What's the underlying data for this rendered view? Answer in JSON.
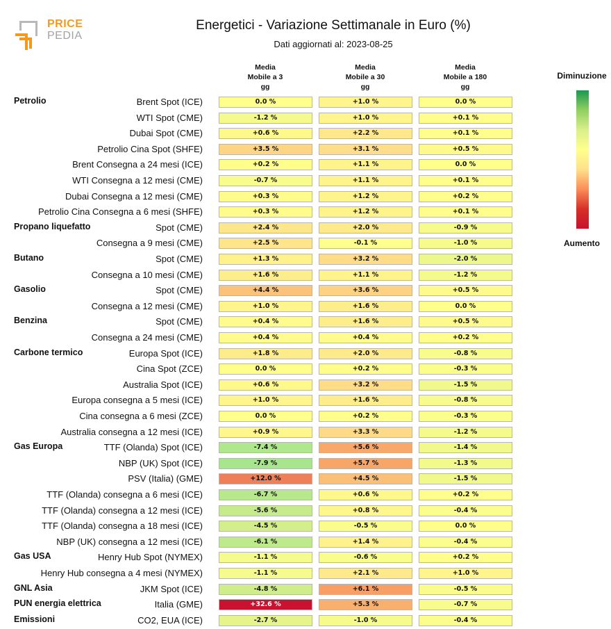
{
  "logo": {
    "line1": "PRICE",
    "line2": "PEDIA"
  },
  "chart_data": {
    "type": "table",
    "title": "Energetici - Variazione Settimanale in Euro (%)",
    "subtitle": "Dati aggiornati al: 2023-08-25",
    "columns": [
      "Media Mobile a 3 gg",
      "Media Mobile a 30 gg",
      "Media Mobile a 180 gg"
    ],
    "column_header_lines": [
      [
        "Media",
        "Mobile a 3",
        "gg"
      ],
      [
        "Media",
        "Mobile a 30",
        "gg"
      ],
      [
        "Media",
        "Mobile a 180",
        "gg"
      ]
    ],
    "legend": {
      "top": "Diminuzione",
      "bottom": "Aumento"
    },
    "rows": [
      {
        "category": "Petrolio",
        "label": "Brent Spot (ICE)",
        "values": [
          0.0,
          1.0,
          0.0
        ],
        "texts": [
          "0.0 %",
          "+1.0 %",
          "0.0 %"
        ]
      },
      {
        "category": "",
        "label": "WTI Spot (CME)",
        "values": [
          -1.2,
          1.0,
          0.1
        ],
        "texts": [
          "-1.2 %",
          "+1.0 %",
          "+0.1 %"
        ]
      },
      {
        "category": "",
        "label": "Dubai Spot (CME)",
        "values": [
          0.6,
          2.2,
          0.1
        ],
        "texts": [
          "+0.6 %",
          "+2.2 %",
          "+0.1 %"
        ]
      },
      {
        "category": "",
        "label": "Petrolio Cina Spot (SHFE)",
        "values": [
          3.5,
          3.1,
          0.5
        ],
        "texts": [
          "+3.5 %",
          "+3.1 %",
          "+0.5 %"
        ]
      },
      {
        "category": "",
        "label": "Brent Consegna a 24 mesi (ICE)",
        "values": [
          0.2,
          1.1,
          0.0
        ],
        "texts": [
          "+0.2 %",
          "+1.1 %",
          "0.0 %"
        ]
      },
      {
        "category": "",
        "label": "WTI Consegna a 12 mesi (CME)",
        "values": [
          -0.7,
          1.1,
          0.1
        ],
        "texts": [
          "-0.7 %",
          "+1.1 %",
          "+0.1 %"
        ]
      },
      {
        "category": "",
        "label": "Dubai Consegna a 12 mesi (CME)",
        "values": [
          0.3,
          1.2,
          0.2
        ],
        "texts": [
          "+0.3 %",
          "+1.2 %",
          "+0.2 %"
        ]
      },
      {
        "category": "",
        "label": "Petrolio Cina Consegna a 6 mesi (SHFE)",
        "values": [
          0.3,
          1.2,
          0.1
        ],
        "texts": [
          "+0.3 %",
          "+1.2 %",
          "+0.1 %"
        ]
      },
      {
        "category": "Propano liquefatto",
        "label": "Spot (CME)",
        "values": [
          2.4,
          2.0,
          -0.9
        ],
        "texts": [
          "+2.4 %",
          "+2.0 %",
          "-0.9 %"
        ]
      },
      {
        "category": "",
        "label": "Consegna a 9 mesi (CME)",
        "values": [
          2.5,
          -0.1,
          -1.0
        ],
        "texts": [
          "+2.5 %",
          "-0.1 %",
          "-1.0 %"
        ]
      },
      {
        "category": "Butano",
        "label": "Spot (CME)",
        "values": [
          1.3,
          3.2,
          -2.0
        ],
        "texts": [
          "+1.3 %",
          "+3.2 %",
          "-2.0 %"
        ]
      },
      {
        "category": "",
        "label": "Consegna a 10 mesi (CME)",
        "values": [
          1.6,
          1.1,
          -1.2
        ],
        "texts": [
          "+1.6 %",
          "+1.1 %",
          "-1.2 %"
        ]
      },
      {
        "category": "Gasolio",
        "label": "Spot (CME)",
        "values": [
          4.4,
          3.6,
          0.5
        ],
        "texts": [
          "+4.4 %",
          "+3.6 %",
          "+0.5 %"
        ]
      },
      {
        "category": "",
        "label": "Consegna a 12 mesi (CME)",
        "values": [
          1.0,
          1.6,
          0.0
        ],
        "texts": [
          "+1.0 %",
          "+1.6 %",
          "0.0 %"
        ]
      },
      {
        "category": "Benzina",
        "label": "Spot (CME)",
        "values": [
          0.4,
          1.6,
          0.5
        ],
        "texts": [
          "+0.4 %",
          "+1.6 %",
          "+0.5 %"
        ]
      },
      {
        "category": "",
        "label": "Consegna a 24 mesi (CME)",
        "values": [
          0.4,
          0.4,
          0.2
        ],
        "texts": [
          "+0.4 %",
          "+0.4 %",
          "+0.2 %"
        ]
      },
      {
        "category": "Carbone termico",
        "label": "Europa Spot (ICE)",
        "values": [
          1.8,
          2.0,
          -0.8
        ],
        "texts": [
          "+1.8 %",
          "+2.0 %",
          "-0.8 %"
        ]
      },
      {
        "category": "",
        "label": "Cina Spot (ZCE)",
        "values": [
          0.0,
          0.2,
          -0.3
        ],
        "texts": [
          "0.0 %",
          "+0.2 %",
          "-0.3 %"
        ]
      },
      {
        "category": "",
        "label": "Australia Spot (ICE)",
        "values": [
          0.6,
          3.2,
          -1.5
        ],
        "texts": [
          "+0.6 %",
          "+3.2 %",
          "-1.5 %"
        ]
      },
      {
        "category": "",
        "label": "Europa consegna a 5 mesi (ICE)",
        "values": [
          1.0,
          1.6,
          -0.8
        ],
        "texts": [
          "+1.0 %",
          "+1.6 %",
          "-0.8 %"
        ]
      },
      {
        "category": "",
        "label": "Cina consegna a 6 mesi (ZCE)",
        "values": [
          0.0,
          0.2,
          -0.3
        ],
        "texts": [
          "0.0 %",
          "+0.2 %",
          "-0.3 %"
        ]
      },
      {
        "category": "",
        "label": "Australia consegna a 12 mesi (ICE)",
        "values": [
          0.9,
          3.3,
          -1.2
        ],
        "texts": [
          "+0.9 %",
          "+3.3 %",
          "-1.2 %"
        ]
      },
      {
        "category": "Gas Europa",
        "label": "TTF (Olanda) Spot (ICE)",
        "values": [
          -7.4,
          5.6,
          -1.4
        ],
        "texts": [
          "-7.4 %",
          "+5.6 %",
          "-1.4 %"
        ]
      },
      {
        "category": "",
        "label": "NBP (UK) Spot (ICE)",
        "values": [
          -7.9,
          5.7,
          -1.3
        ],
        "texts": [
          "-7.9 %",
          "+5.7 %",
          "-1.3 %"
        ]
      },
      {
        "category": "",
        "label": "PSV (Italia) (GME)",
        "values": [
          12.0,
          4.5,
          -1.5
        ],
        "texts": [
          "+12.0 %",
          "+4.5 %",
          "-1.5 %"
        ]
      },
      {
        "category": "",
        "label": "TTF (Olanda) consegna a 6 mesi (ICE)",
        "values": [
          -6.7,
          0.6,
          0.2
        ],
        "texts": [
          "-6.7 %",
          "+0.6 %",
          "+0.2 %"
        ]
      },
      {
        "category": "",
        "label": "TTF (Olanda) consegna a 12 mesi (ICE)",
        "values": [
          -5.6,
          0.8,
          -0.4
        ],
        "texts": [
          "-5.6 %",
          "+0.8 %",
          "-0.4 %"
        ]
      },
      {
        "category": "",
        "label": "TTF (Olanda) consegna a 18 mesi (ICE)",
        "values": [
          -4.5,
          -0.5,
          0.0
        ],
        "texts": [
          "-4.5 %",
          "-0.5 %",
          "0.0 %"
        ]
      },
      {
        "category": "",
        "label": "NBP (UK) consegna a 12 mesi (ICE)",
        "values": [
          -6.1,
          1.4,
          -0.4
        ],
        "texts": [
          "-6.1 %",
          "+1.4 %",
          "-0.4 %"
        ]
      },
      {
        "category": "Gas USA",
        "label": "Henry Hub Spot (NYMEX)",
        "values": [
          -1.1,
          -0.6,
          0.2
        ],
        "texts": [
          "-1.1 %",
          "-0.6 %",
          "+0.2 %"
        ]
      },
      {
        "category": "",
        "label": "Henry Hub consegna a 4 mesi (NYMEX)",
        "values": [
          -1.1,
          2.1,
          1.0
        ],
        "texts": [
          "-1.1 %",
          "+2.1 %",
          "+1.0 %"
        ]
      },
      {
        "category": "GNL Asia",
        "label": "JKM Spot (ICE)",
        "values": [
          -4.8,
          6.1,
          -0.5
        ],
        "texts": [
          "-4.8 %",
          "+6.1 %",
          "-0.5 %"
        ]
      },
      {
        "category": "PUN energia elettrica",
        "label": "Italia (GME)",
        "values": [
          32.6,
          5.3,
          -0.7
        ],
        "texts": [
          "+32.6 %",
          "+5.3 %",
          "-0.7 %"
        ]
      },
      {
        "category": "Emissioni",
        "label": "CO2, EUA (ICE)",
        "values": [
          -2.7,
          -1.0,
          -0.4
        ],
        "texts": [
          "-2.7 %",
          "-1.0 %",
          "-0.4 %"
        ]
      }
    ]
  }
}
